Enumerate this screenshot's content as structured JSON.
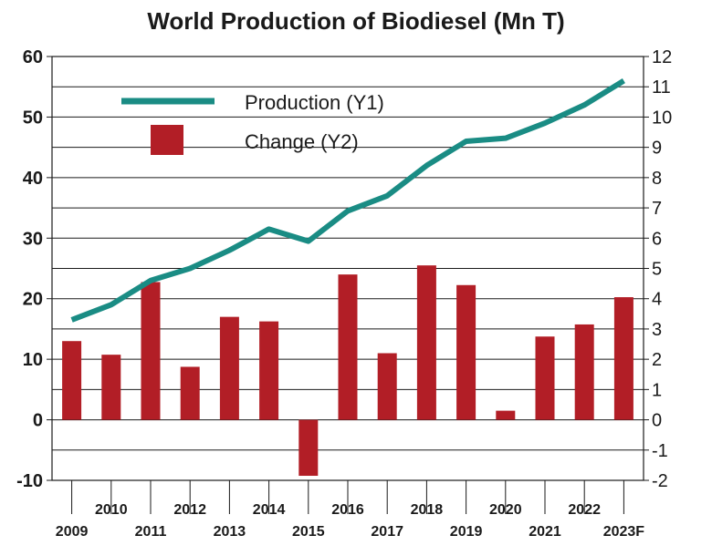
{
  "chart_data": {
    "type": "bar+line",
    "title": "World Production of Biodiesel (Mn T)",
    "categories": [
      "2009",
      "2010",
      "2011",
      "2012",
      "2013",
      "2014",
      "2015",
      "2016",
      "2017",
      "2018",
      "2019",
      "2020",
      "2021",
      "2022",
      "2023F"
    ],
    "series": [
      {
        "name": "Production (Y1)",
        "type": "line",
        "axis": "left",
        "color": "#1a8c84",
        "values": [
          16.5,
          19,
          23,
          25,
          28,
          31.5,
          29.5,
          34.5,
          37,
          42,
          46,
          46.5,
          49,
          52,
          56
        ]
      },
      {
        "name": "Change (Y2)",
        "type": "bar",
        "axis": "right",
        "color": "#b21e26",
        "values": [
          2.6,
          2.15,
          4.55,
          1.75,
          3.4,
          3.25,
          -1.85,
          4.8,
          2.2,
          5.1,
          4.45,
          0.3,
          2.75,
          3.15,
          4.05
        ]
      }
    ],
    "y1": {
      "min": -10,
      "max": 60,
      "step": 10,
      "ticks": [
        "-10",
        "0",
        "10",
        "20",
        "30",
        "40",
        "50",
        "60"
      ]
    },
    "y2": {
      "min": -2,
      "max": 12,
      "step": 1,
      "ticks": [
        "-2",
        "-1",
        "0",
        "1",
        "2",
        "3",
        "4",
        "5",
        "6",
        "7",
        "8",
        "9",
        "10",
        "11",
        "12"
      ]
    },
    "grid": true,
    "legend_position": "top-left"
  }
}
